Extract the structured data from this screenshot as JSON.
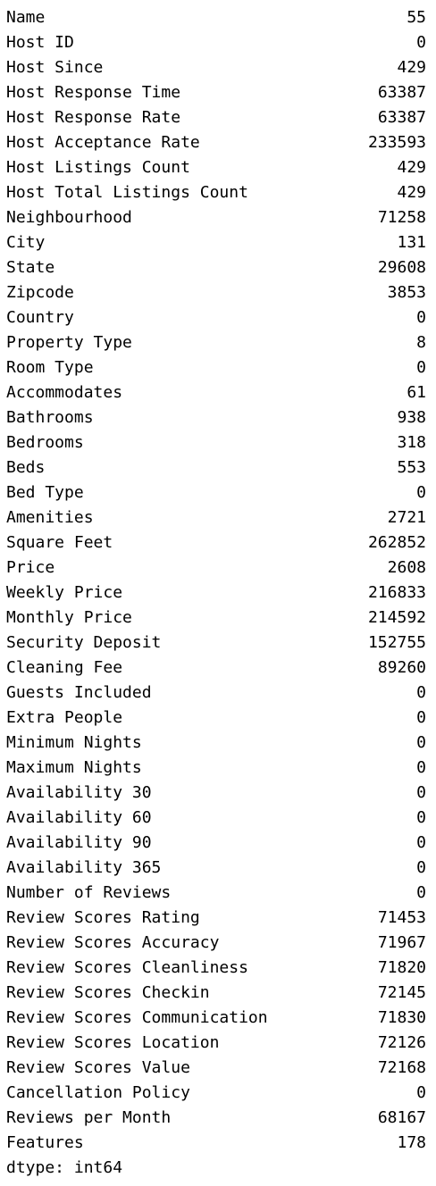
{
  "series": {
    "rows": [
      {
        "label": "Name",
        "value": "55"
      },
      {
        "label": "Host ID",
        "value": "0"
      },
      {
        "label": "Host Since",
        "value": "429"
      },
      {
        "label": "Host Response Time",
        "value": "63387"
      },
      {
        "label": "Host Response Rate",
        "value": "63387"
      },
      {
        "label": "Host Acceptance Rate",
        "value": "233593"
      },
      {
        "label": "Host Listings Count",
        "value": "429"
      },
      {
        "label": "Host Total Listings Count",
        "value": "429"
      },
      {
        "label": "Neighbourhood",
        "value": "71258"
      },
      {
        "label": "City",
        "value": "131"
      },
      {
        "label": "State",
        "value": "29608"
      },
      {
        "label": "Zipcode",
        "value": "3853"
      },
      {
        "label": "Country",
        "value": "0"
      },
      {
        "label": "Property Type",
        "value": "8"
      },
      {
        "label": "Room Type",
        "value": "0"
      },
      {
        "label": "Accommodates",
        "value": "61"
      },
      {
        "label": "Bathrooms",
        "value": "938"
      },
      {
        "label": "Bedrooms",
        "value": "318"
      },
      {
        "label": "Beds",
        "value": "553"
      },
      {
        "label": "Bed Type",
        "value": "0"
      },
      {
        "label": "Amenities",
        "value": "2721"
      },
      {
        "label": "Square Feet",
        "value": "262852"
      },
      {
        "label": "Price",
        "value": "2608"
      },
      {
        "label": "Weekly Price",
        "value": "216833"
      },
      {
        "label": "Monthly Price",
        "value": "214592"
      },
      {
        "label": "Security Deposit",
        "value": "152755"
      },
      {
        "label": "Cleaning Fee",
        "value": "89260"
      },
      {
        "label": "Guests Included",
        "value": "0"
      },
      {
        "label": "Extra People",
        "value": "0"
      },
      {
        "label": "Minimum Nights",
        "value": "0"
      },
      {
        "label": "Maximum Nights",
        "value": "0"
      },
      {
        "label": "Availability 30",
        "value": "0"
      },
      {
        "label": "Availability 60",
        "value": "0"
      },
      {
        "label": "Availability 90",
        "value": "0"
      },
      {
        "label": "Availability 365",
        "value": "0"
      },
      {
        "label": "Number of Reviews",
        "value": "0"
      },
      {
        "label": "Review Scores Rating",
        "value": "71453"
      },
      {
        "label": "Review Scores Accuracy",
        "value": "71967"
      },
      {
        "label": "Review Scores Cleanliness",
        "value": "71820"
      },
      {
        "label": "Review Scores Checkin",
        "value": "72145"
      },
      {
        "label": "Review Scores Communication",
        "value": "71830"
      },
      {
        "label": "Review Scores Location",
        "value": "72126"
      },
      {
        "label": "Review Scores Value",
        "value": "72168"
      },
      {
        "label": "Cancellation Policy",
        "value": "0"
      },
      {
        "label": "Reviews per Month",
        "value": "68167"
      },
      {
        "label": "Features",
        "value": "178"
      }
    ],
    "dtype": "dtype: int64"
  }
}
